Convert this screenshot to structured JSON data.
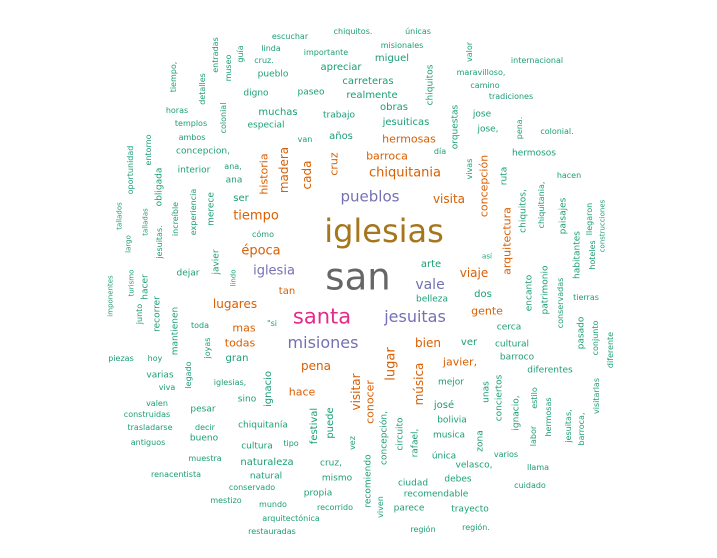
{
  "colors": [
    "#1b9e77",
    "#d95f02",
    "#7570b3",
    "#e7298a",
    "#a6761d",
    "#666666"
  ],
  "words": [
    {
      "text": "san",
      "color": 5
    },
    {
      "text": "iglesias",
      "color": 4
    },
    {
      "text": "santa",
      "color": 3
    },
    {
      "text": "jesuitas",
      "color": 2
    },
    {
      "text": "misiones",
      "color": 2
    },
    {
      "text": "pueblos",
      "color": 2
    },
    {
      "text": "chiquitania",
      "color": 1
    },
    {
      "text": "iglesia",
      "color": 2
    },
    {
      "text": "vale",
      "color": 2
    },
    {
      "text": "tiempo",
      "color": 1
    },
    {
      "text": "época",
      "color": 1
    },
    {
      "text": "lugares",
      "color": 1
    },
    {
      "text": "pena",
      "color": 1
    },
    {
      "text": "bien",
      "color": 1
    },
    {
      "text": "visita",
      "color": 1
    },
    {
      "text": "viaje",
      "color": 1
    },
    {
      "text": "madera",
      "color": 1
    },
    {
      "text": "cada",
      "color": 1
    },
    {
      "text": "cruz",
      "color": 1
    },
    {
      "text": "historia",
      "color": 1
    },
    {
      "text": "lugar",
      "color": 1
    },
    {
      "text": "visitar",
      "color": 1
    },
    {
      "text": "música",
      "color": 1
    },
    {
      "text": "concepción",
      "color": 1
    },
    {
      "text": "arquitectura",
      "color": 1
    },
    {
      "text": "barroca",
      "color": 1
    },
    {
      "text": "hermosas",
      "color": 1
    },
    {
      "text": "gente",
      "color": 1
    },
    {
      "text": "conocer",
      "color": 1
    },
    {
      "text": "hace",
      "color": 1
    },
    {
      "text": "mas",
      "color": 1
    },
    {
      "text": "todas",
      "color": 1
    },
    {
      "text": "tan",
      "color": 1
    },
    {
      "text": "javier,",
      "color": 1
    },
    {
      "text": "dos",
      "color": 0
    },
    {
      "text": "arte",
      "color": 0
    },
    {
      "text": "ver",
      "color": 0
    },
    {
      "text": "belleza",
      "color": 0
    },
    {
      "text": "cerca",
      "color": 0
    },
    {
      "text": "cultural",
      "color": 0
    },
    {
      "text": "barroco",
      "color": 0
    },
    {
      "text": "mejor",
      "color": 0
    },
    {
      "text": "josé",
      "color": 0
    },
    {
      "text": "bolivia",
      "color": 0
    },
    {
      "text": "musica",
      "color": 0
    },
    {
      "text": "única",
      "color": 0
    },
    {
      "text": "velasco,",
      "color": 0
    },
    {
      "text": "debes",
      "color": 0
    },
    {
      "text": "ciudad",
      "color": 0
    },
    {
      "text": "recomendable",
      "color": 0
    },
    {
      "text": "parece",
      "color": 0
    },
    {
      "text": "trayecto",
      "color": 0
    },
    {
      "text": "región",
      "color": 0
    },
    {
      "text": "región.",
      "color": 0
    },
    {
      "text": "cuidado",
      "color": 0
    },
    {
      "text": "llama",
      "color": 0
    },
    {
      "text": "varios",
      "color": 0
    },
    {
      "text": "zona",
      "color": 0
    },
    {
      "text": "unas",
      "color": 0
    },
    {
      "text": "conciertos",
      "color": 0
    },
    {
      "text": "ignacio,",
      "color": 0
    },
    {
      "text": "estilo",
      "color": 0
    },
    {
      "text": "labor",
      "color": 0
    },
    {
      "text": "hermosas",
      "color": 0
    },
    {
      "text": "jesuitas,",
      "color": 0
    },
    {
      "text": "barroca,",
      "color": 0
    },
    {
      "text": "visitarlas",
      "color": 0
    },
    {
      "text": "diferentes",
      "color": 0
    },
    {
      "text": "diferente",
      "color": 0
    },
    {
      "text": "conjunto",
      "color": 0
    },
    {
      "text": "pasado",
      "color": 0
    },
    {
      "text": "tierras",
      "color": 0
    },
    {
      "text": "conservadas",
      "color": 0
    },
    {
      "text": "patrimonio",
      "color": 0
    },
    {
      "text": "encanto",
      "color": 0
    },
    {
      "text": "habitantes",
      "color": 0
    },
    {
      "text": "hoteles",
      "color": 0
    },
    {
      "text": "construcciones",
      "color": 0
    },
    {
      "text": "llegaron",
      "color": 0
    },
    {
      "text": "paisajes",
      "color": 0
    },
    {
      "text": "chiquitania,",
      "color": 0
    },
    {
      "text": "chiquitos,",
      "color": 0
    },
    {
      "text": "ruta",
      "color": 0
    },
    {
      "text": "hacen",
      "color": 0
    },
    {
      "text": "hermosos",
      "color": 0
    },
    {
      "text": "colonial.",
      "color": 0
    },
    {
      "text": "pena.",
      "color": 0
    },
    {
      "text": "jose,",
      "color": 0
    },
    {
      "text": "jose",
      "color": 0
    },
    {
      "text": "vivas",
      "color": 0
    },
    {
      "text": "así",
      "color": 0
    },
    {
      "text": "orquestas",
      "color": 0
    },
    {
      "text": "día",
      "color": 0
    },
    {
      "text": "chiquitos",
      "color": 0
    },
    {
      "text": "obras",
      "color": 0
    },
    {
      "text": "jesuiticas",
      "color": 0
    },
    {
      "text": "realmente",
      "color": 0
    },
    {
      "text": "carreteras",
      "color": 0
    },
    {
      "text": "miguel",
      "color": 0
    },
    {
      "text": "misionales",
      "color": 0
    },
    {
      "text": "chiquitos.",
      "color": 0
    },
    {
      "text": "únicas",
      "color": 0
    },
    {
      "text": "valor",
      "color": 0
    },
    {
      "text": "maravilloso,",
      "color": 0
    },
    {
      "text": "camino",
      "color": 0
    },
    {
      "text": "tradiciones",
      "color": 0
    },
    {
      "text": "internacional",
      "color": 0
    },
    {
      "text": "escuchar",
      "color": 0
    },
    {
      "text": "importante",
      "color": 0
    },
    {
      "text": "apreciar",
      "color": 0
    },
    {
      "text": "linda",
      "color": 0
    },
    {
      "text": "cruz.",
      "color": 0
    },
    {
      "text": "pueblo",
      "color": 0
    },
    {
      "text": "digno",
      "color": 0
    },
    {
      "text": "paseo",
      "color": 0
    },
    {
      "text": "muchas",
      "color": 0
    },
    {
      "text": "especial",
      "color": 0
    },
    {
      "text": "trabajo",
      "color": 0
    },
    {
      "text": "años",
      "color": 0
    },
    {
      "text": "van",
      "color": 0
    },
    {
      "text": "guía",
      "color": 0
    },
    {
      "text": "museo",
      "color": 0
    },
    {
      "text": "entradas",
      "color": 0
    },
    {
      "text": "tiempo,",
      "color": 0
    },
    {
      "text": "horas",
      "color": 0
    },
    {
      "text": "templos",
      "color": 0
    },
    {
      "text": "ambos",
      "color": 0
    },
    {
      "text": "detalles",
      "color": 0
    },
    {
      "text": "colonial",
      "color": 0
    },
    {
      "text": "concepcion,",
      "color": 0
    },
    {
      "text": "interior",
      "color": 0
    },
    {
      "text": "ana,",
      "color": 0
    },
    {
      "text": "ana",
      "color": 0
    },
    {
      "text": "entorno",
      "color": 0
    },
    {
      "text": "oportunidad",
      "color": 0
    },
    {
      "text": "obligada",
      "color": 0
    },
    {
      "text": "ser",
      "color": 0
    },
    {
      "text": "merece",
      "color": 0
    },
    {
      "text": "experiencia",
      "color": 0
    },
    {
      "text": "increíble",
      "color": 0
    },
    {
      "text": "tallados",
      "color": 0
    },
    {
      "text": "talladas",
      "color": 0
    },
    {
      "text": "largo",
      "color": 0
    },
    {
      "text": "jesuitas.",
      "color": 0
    },
    {
      "text": "cómo",
      "color": 0
    },
    {
      "text": "javier",
      "color": 0
    },
    {
      "text": "lindo",
      "color": 0
    },
    {
      "text": "dejar",
      "color": 0
    },
    {
      "text": "hacer",
      "color": 0
    },
    {
      "text": "turismo",
      "color": 0
    },
    {
      "text": "imponentes",
      "color": 0
    },
    {
      "text": "junto",
      "color": 0
    },
    {
      "text": "recorrer",
      "color": 0
    },
    {
      "text": "mantienen",
      "color": 0
    },
    {
      "text": "toda",
      "color": 0
    },
    {
      "text": "\"si",
      "color": 0
    },
    {
      "text": "joyas",
      "color": 0
    },
    {
      "text": "gran",
      "color": 0
    },
    {
      "text": "piezas",
      "color": 0
    },
    {
      "text": "hoy",
      "color": 0
    },
    {
      "text": "varias",
      "color": 0
    },
    {
      "text": "viva",
      "color": 0
    },
    {
      "text": "legado",
      "color": 0
    },
    {
      "text": "iglesias,",
      "color": 0
    },
    {
      "text": "valen",
      "color": 0
    },
    {
      "text": "sino",
      "color": 0
    },
    {
      "text": "construidas",
      "color": 0
    },
    {
      "text": "pesar",
      "color": 0
    },
    {
      "text": "trasladarse",
      "color": 0
    },
    {
      "text": "decir",
      "color": 0
    },
    {
      "text": "antiguos",
      "color": 0
    },
    {
      "text": "bueno",
      "color": 0
    },
    {
      "text": "ignacio",
      "color": 0
    },
    {
      "text": "chiquitanía",
      "color": 0
    },
    {
      "text": "festival",
      "color": 0
    },
    {
      "text": "puede",
      "color": 0
    },
    {
      "text": "tipo",
      "color": 0
    },
    {
      "text": "cultura",
      "color": 0
    },
    {
      "text": "muestra",
      "color": 0
    },
    {
      "text": "naturaleza",
      "color": 0
    },
    {
      "text": "natural",
      "color": 0
    },
    {
      "text": "renacentista",
      "color": 0
    },
    {
      "text": "conservado",
      "color": 0
    },
    {
      "text": "mestizo",
      "color": 0
    },
    {
      "text": "mundo",
      "color": 0
    },
    {
      "text": "arquitectónica",
      "color": 0
    },
    {
      "text": "restauradas",
      "color": 0
    },
    {
      "text": "propia",
      "color": 0
    },
    {
      "text": "recorrido",
      "color": 0
    },
    {
      "text": "mismo",
      "color": 0
    },
    {
      "text": "cruz,",
      "color": 0
    },
    {
      "text": "vez",
      "color": 0
    },
    {
      "text": "recomiendo",
      "color": 0
    },
    {
      "text": "viven",
      "color": 0
    },
    {
      "text": "concepción,",
      "color": 0
    },
    {
      "text": "circuito",
      "color": 0
    },
    {
      "text": "rafael,",
      "color": 0
    }
  ]
}
